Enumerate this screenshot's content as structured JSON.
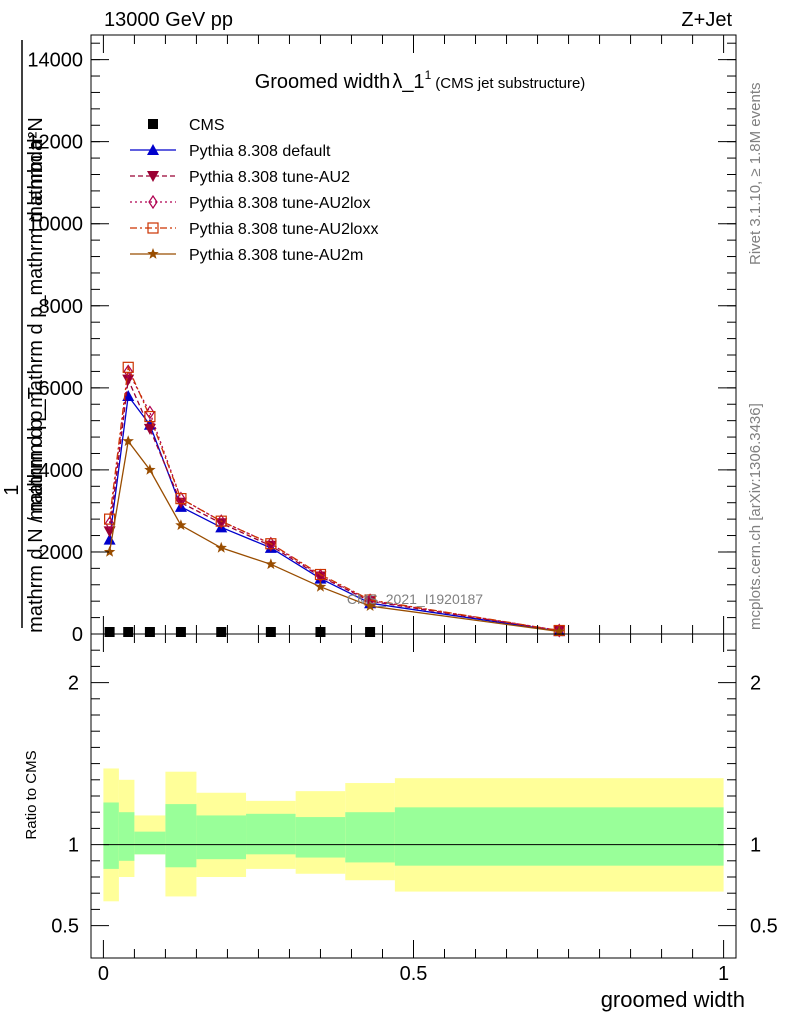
{
  "header": {
    "energy_label": "13000 GeV pp",
    "process_label": "Z+Jet"
  },
  "side_text": {
    "rivet": "Rivet 3.1.10, ≥ 1.8M events",
    "mcplots": "mcplots.cern.ch [arXiv:1306.3436]"
  },
  "chart_data": [
    {
      "type": "line",
      "title": "Groomed width",
      "title_symbol": "λ_1",
      "title_superscript": "1",
      "subtitle": "(CMS jet substructure)",
      "watermark": "CMS_2021_I1920187",
      "ylabel_top": "mathrm d²N",
      "ylabel_bottom": "mathrm d p_mathrm d p_mathrm d lambda",
      "ylabel_fraction_numerator": "1",
      "ylabel_fraction_denominator": "mathrm d N / mathrm d p_T",
      "xlim": [
        -0.02,
        1.02
      ],
      "ylim": [
        0,
        14600
      ],
      "yticks": [
        {
          "v": 0,
          "label": "0"
        },
        {
          "v": 2000,
          "label": "2000"
        },
        {
          "v": 4000,
          "label": "4000"
        },
        {
          "v": 6000,
          "label": "6000"
        },
        {
          "v": 8000,
          "label": "8000"
        },
        {
          "v": 10000,
          "label": "10000"
        },
        {
          "v": 12000,
          "label": "12000"
        },
        {
          "v": 14000,
          "label": "14000"
        }
      ],
      "x": [
        0.01,
        0.04,
        0.075,
        0.125,
        0.19,
        0.27,
        0.35,
        0.43,
        0.735
      ],
      "series": [
        {
          "name": "CMS",
          "color": "#000000",
          "marker": "square",
          "dash": "",
          "values": [
            0,
            0,
            0,
            0,
            0,
            0,
            0,
            0,
            null
          ]
        },
        {
          "name": "Pythia 8.308 default",
          "color": "#0000cc",
          "marker": "triangle-up",
          "dash": "",
          "values": [
            2300,
            5800,
            5100,
            3100,
            2600,
            2100,
            1350,
            750,
            70
          ]
        },
        {
          "name": "Pythia 8.308 tune-AU2",
          "color": "#990033",
          "marker": "triangle-down",
          "dash": "5,3",
          "values": [
            2500,
            6200,
            5000,
            3200,
            2700,
            2150,
            1400,
            800,
            80
          ]
        },
        {
          "name": "Pythia 8.308 tune-AU2lox",
          "color": "#b00050",
          "marker": "diamond",
          "dash": "2,3",
          "values": [
            2700,
            6400,
            5400,
            3300,
            2750,
            2200,
            1420,
            820,
            85
          ]
        },
        {
          "name": "Pythia 8.308 tune-AU2loxx",
          "color": "#cc3300",
          "marker": "square-open",
          "dash": "7,3,2,3",
          "values": [
            2800,
            6500,
            5300,
            3300,
            2750,
            2200,
            1450,
            830,
            85
          ]
        },
        {
          "name": "Pythia 8.308 tune-AU2m",
          "color": "#994d00",
          "marker": "star",
          "dash": "",
          "values": [
            2000,
            4700,
            4000,
            2650,
            2100,
            1700,
            1150,
            680,
            60
          ]
        }
      ]
    },
    {
      "type": "area",
      "ylabel": "Ratio to CMS",
      "xlabel": "groomed width",
      "xlim": [
        -0.02,
        1.02
      ],
      "ylim": [
        0.3,
        2.3
      ],
      "yticks": [
        {
          "v": 0.5,
          "label": "0.5"
        },
        {
          "v": 1,
          "label": "1"
        },
        {
          "v": 2,
          "label": "2"
        }
      ],
      "xticks": [
        {
          "v": 0,
          "label": "0"
        },
        {
          "v": 0.5,
          "label": "0.5"
        },
        {
          "v": 1,
          "label": "1"
        }
      ],
      "bins": [
        0.0,
        0.025,
        0.05,
        0.1,
        0.15,
        0.23,
        0.31,
        0.39,
        0.47,
        1.0
      ],
      "band_inner": [
        [
          0.85,
          1.26
        ],
        [
          0.9,
          1.2
        ],
        [
          0.94,
          1.08
        ],
        [
          0.86,
          1.25
        ],
        [
          0.91,
          1.18
        ],
        [
          0.94,
          1.19
        ],
        [
          0.92,
          1.17
        ],
        [
          0.89,
          1.2
        ],
        [
          0.87,
          1.23
        ]
      ],
      "band_outer": [
        [
          0.65,
          1.47
        ],
        [
          0.8,
          1.4
        ],
        [
          0.94,
          1.18
        ],
        [
          0.68,
          1.45
        ],
        [
          0.8,
          1.32
        ],
        [
          0.85,
          1.27
        ],
        [
          0.82,
          1.33
        ],
        [
          0.78,
          1.38
        ],
        [
          0.71,
          1.41
        ]
      ],
      "colors": {
        "inner": "#99ff99",
        "outer": "#ffff99",
        "reference_line": "#000000"
      }
    }
  ]
}
